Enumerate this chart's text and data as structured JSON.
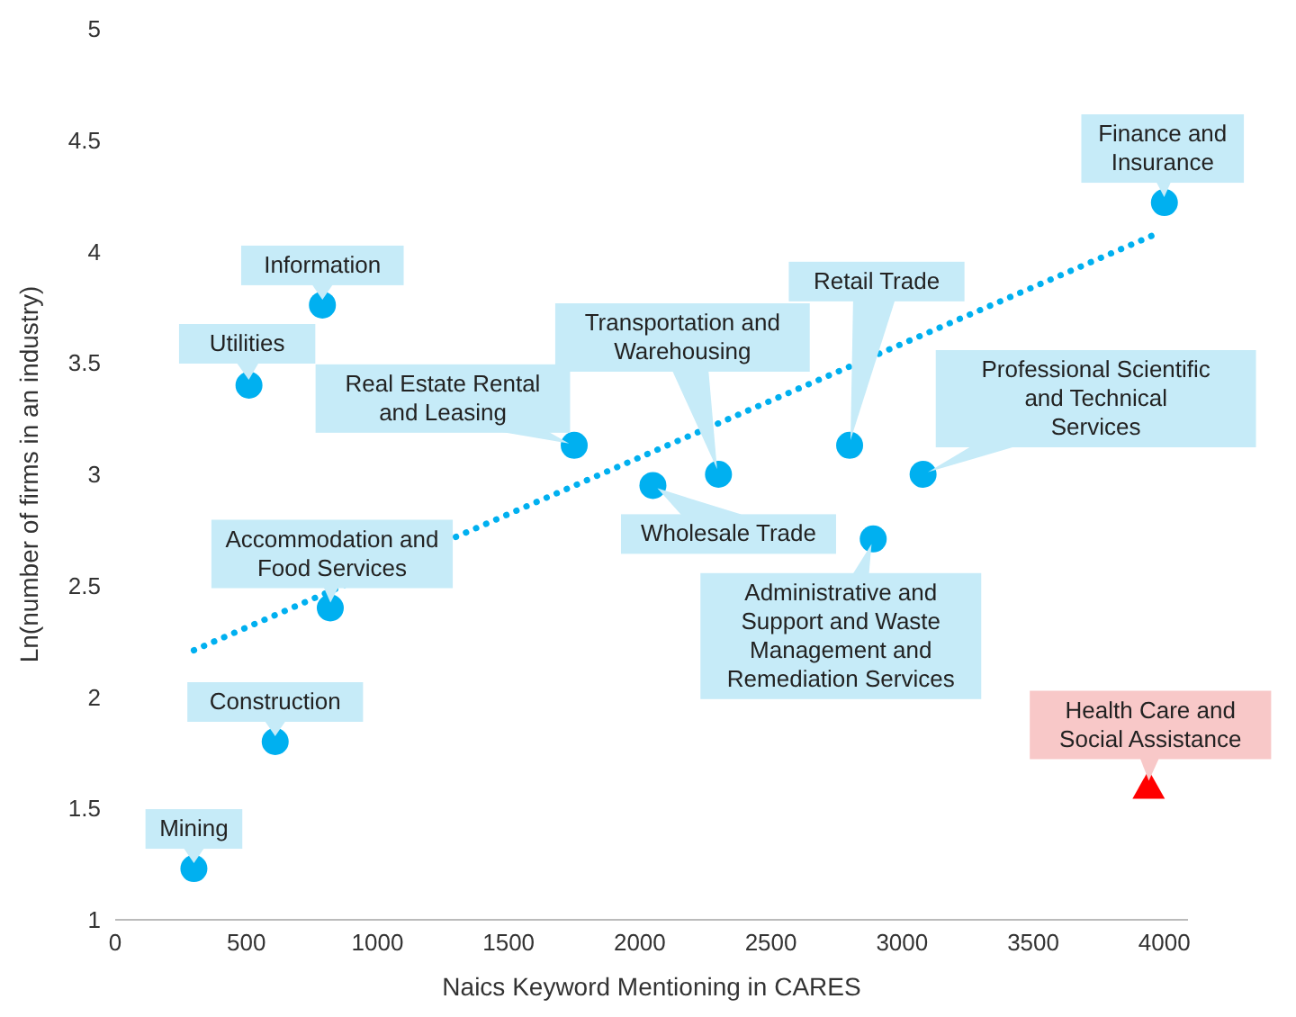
{
  "chart_data": {
    "type": "scatter",
    "xlabel": "Naics Keyword Mentioning in CARES",
    "ylabel": "Ln(number of firms in an industry)",
    "xlim": [
      0,
      4090
    ],
    "xticks": [
      0,
      500,
      1000,
      1500,
      2000,
      2500,
      3000,
      3500,
      4000
    ],
    "ylim": [
      1,
      5
    ],
    "yticks": [
      1,
      1.5,
      2,
      2.5,
      3,
      3.5,
      4,
      4.5,
      5
    ],
    "grid": false,
    "legend": false,
    "series": [
      {
        "color": "#00b0f0",
        "marker": "circle",
        "x": [
          300,
          610,
          820,
          510,
          790,
          1750,
          2050,
          2300,
          2800,
          2890,
          3080,
          4000
        ],
        "values": [
          1.23,
          1.8,
          2.4,
          3.4,
          3.76,
          3.13,
          2.95,
          3.0,
          3.13,
          2.71,
          3.0,
          4.22
        ]
      },
      {
        "color": "#ff0000",
        "marker": "triangle",
        "x": [
          3940
        ],
        "values": [
          1.6
        ]
      },
      {
        "type": "line",
        "color": "#00b0f0",
        "marker": "none",
        "line_style": "dotted",
        "x": [
          300,
          3970
        ],
        "values": [
          2.21,
          4.08
        ]
      }
    ],
    "annotations": [
      {
        "text": "Mining",
        "x": 300,
        "y": 1.23
      },
      {
        "text": "Construction",
        "x": 610,
        "y": 1.8
      },
      {
        "text": "Accommodation and Food Services",
        "x": 820,
        "y": 2.4
      },
      {
        "text": "Utilities",
        "x": 510,
        "y": 3.4
      },
      {
        "text": "Information",
        "x": 790,
        "y": 3.76
      },
      {
        "text": "Real Estate Rental and Leasing",
        "x": 1750,
        "y": 3.13
      },
      {
        "text": "Wholesale Trade",
        "x": 2050,
        "y": 2.95
      },
      {
        "text": "Transportation and Warehousing",
        "x": 2300,
        "y": 3.0
      },
      {
        "text": "Retail Trade",
        "x": 2800,
        "y": 3.13
      },
      {
        "text": "Administrative and Support and Waste Management and Remediation Services",
        "x": 2890,
        "y": 2.71
      },
      {
        "text": "Professional Scientific and Technical Services",
        "x": 3080,
        "y": 3.0
      },
      {
        "text": "Finance and Insurance",
        "x": 4000,
        "y": 4.22
      },
      {
        "text": "Health Care and Social Assistance",
        "x": 3940,
        "y": 1.6
      }
    ]
  }
}
